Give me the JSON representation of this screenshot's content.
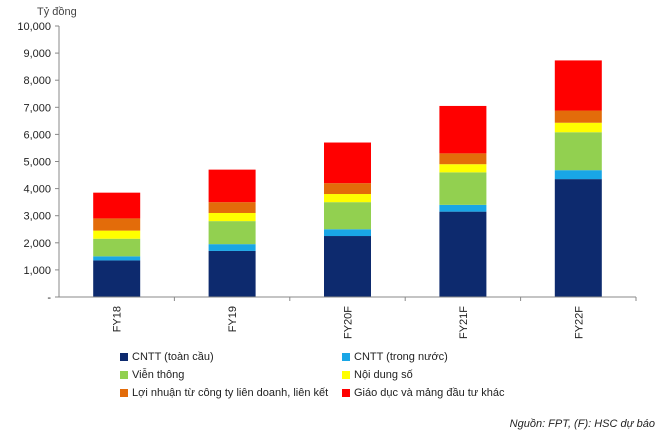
{
  "chart_data": {
    "type": "bar",
    "stacked": true,
    "ylabel": "Tỷ đồng",
    "ylim": [
      0,
      10000
    ],
    "yticks": [
      "-",
      "1,000",
      "2,000",
      "3,000",
      "4,000",
      "5,000",
      "6,000",
      "7,000",
      "8,000",
      "9,000",
      "10,000"
    ],
    "grid": false,
    "legend_position": "bottom",
    "categories": [
      "FY18",
      "FY19",
      "FY20F",
      "FY21F",
      "FY22F"
    ],
    "series": [
      {
        "name": "CNTT (toàn cầu)",
        "color": "#0d2a6e",
        "values": [
          1350,
          1700,
          2250,
          3150,
          4350
        ]
      },
      {
        "name": "CNTT (trong nước)",
        "color": "#19a6e6",
        "values": [
          150,
          250,
          250,
          250,
          330
        ]
      },
      {
        "name": "Viễn thông",
        "color": "#92d050",
        "values": [
          650,
          850,
          1000,
          1200,
          1400
        ]
      },
      {
        "name": "Nội dung số",
        "color": "#ffff00",
        "values": [
          300,
          300,
          300,
          300,
          350
        ]
      },
      {
        "name": "Lợi nhuận từ công ty liên doanh, liên kết",
        "color": "#e36c0a",
        "values": [
          450,
          400,
          400,
          400,
          450
        ]
      },
      {
        "name": "Giáo dục và mảng đầu tư khác",
        "color": "#ff0000",
        "values": [
          950,
          1200,
          1500,
          1750,
          1850
        ]
      }
    ]
  },
  "source_note": "Nguồn: FPT, (F): HSC dự báo"
}
